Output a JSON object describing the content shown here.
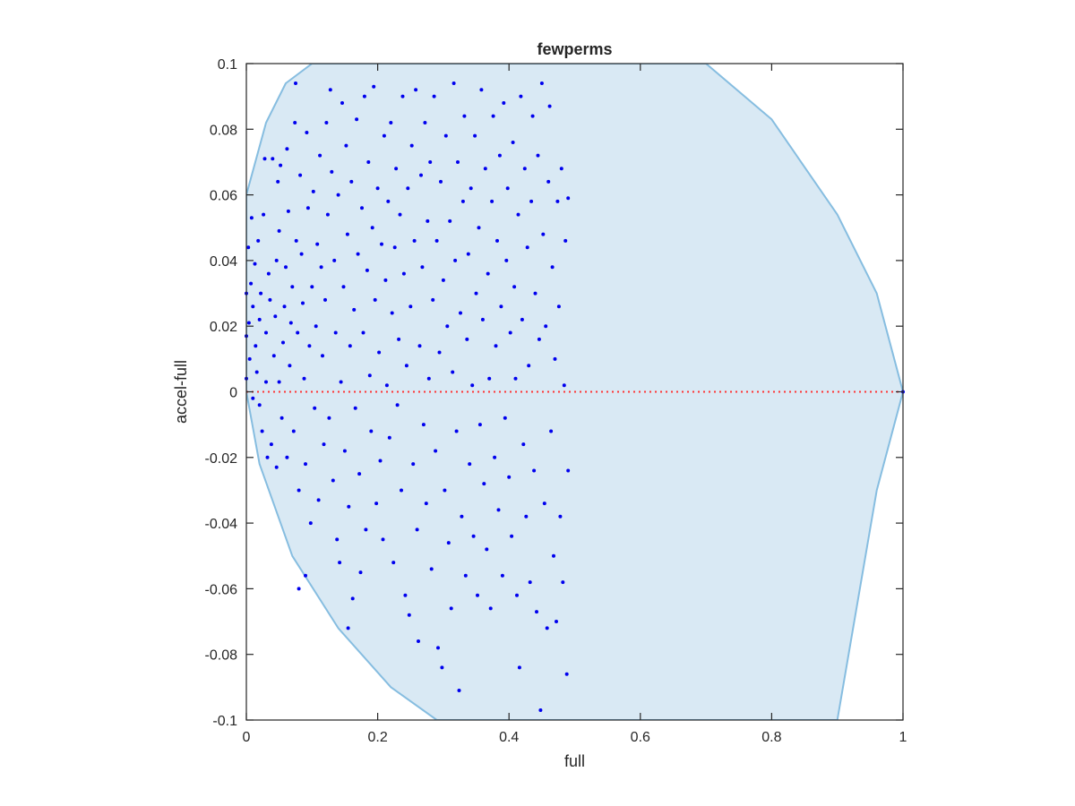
{
  "chart_data": {
    "type": "scatter",
    "title": "fewperms",
    "xlabel": "full",
    "ylabel": "accel-full",
    "xlim": [
      0,
      1
    ],
    "ylim": [
      -0.1,
      0.1
    ],
    "x_ticks": [
      0,
      0.2,
      0.4,
      0.6,
      0.8,
      1
    ],
    "y_ticks": [
      -0.1,
      -0.08,
      -0.06,
      -0.04,
      -0.02,
      0,
      0.02,
      0.04,
      0.06,
      0.08,
      0.1
    ],
    "x_tick_labels": [
      "0",
      "0.2",
      "0.4",
      "0.6",
      "0.8",
      "1"
    ],
    "y_tick_labels": [
      "-0.1",
      "-0.08",
      "-0.06",
      "-0.04",
      "-0.02",
      "0",
      "0.02",
      "0.04",
      "0.06",
      "0.08",
      "0.1"
    ],
    "grid": false,
    "colors": {
      "points": "#0000ee",
      "region_fill": "#d9e9f4",
      "region_edge": "#86bde0",
      "reference_line": "#ff3333",
      "axes": "#262626"
    },
    "feasible_region": {
      "description_shape": "ellipse-like band with boundary through (0,0) and (1,0)",
      "boundary_points": [
        [
          0,
          0.0
        ],
        [
          0.0,
          0.06
        ],
        [
          0.03,
          0.082
        ],
        [
          0.06,
          0.094
        ],
        [
          0.1,
          0.1
        ],
        [
          0.7,
          0.1
        ],
        [
          0.8,
          0.083
        ],
        [
          0.9,
          0.054
        ],
        [
          0.96,
          0.03
        ],
        [
          1.0,
          0.0
        ],
        [
          0.96,
          -0.03
        ],
        [
          0.9,
          -0.1
        ],
        [
          0.29,
          -0.1
        ],
        [
          0.22,
          -0.09
        ],
        [
          0.14,
          -0.072
        ],
        [
          0.07,
          -0.05
        ],
        [
          0.02,
          -0.022
        ],
        [
          0,
          0.0
        ]
      ]
    },
    "reference_line": {
      "y": 0,
      "style": "dotted"
    },
    "series": [
      {
        "points": [
          [
            0.0,
            0.017
          ],
          [
            0.0,
            0.03
          ],
          [
            0.0,
            0.004
          ],
          [
            0.003,
            0.044
          ],
          [
            0.004,
            0.021
          ],
          [
            0.005,
            0.01
          ],
          [
            0.007,
            0.033
          ],
          [
            0.008,
            0.053
          ],
          [
            0.01,
            0.026
          ],
          [
            0.01,
            -0.002
          ],
          [
            0.013,
            0.039
          ],
          [
            0.014,
            0.014
          ],
          [
            0.016,
            0.006
          ],
          [
            0.018,
            0.046
          ],
          [
            0.02,
            0.022
          ],
          [
            0.02,
            -0.004
          ],
          [
            0.022,
            0.03
          ],
          [
            0.024,
            -0.012
          ],
          [
            0.026,
            0.054
          ],
          [
            0.028,
            0.071
          ],
          [
            0.03,
            0.018
          ],
          [
            0.03,
            0.003
          ],
          [
            0.032,
            -0.02
          ],
          [
            0.034,
            0.036
          ],
          [
            0.036,
            0.028
          ],
          [
            0.038,
            -0.016
          ],
          [
            0.04,
            0.071
          ],
          [
            0.042,
            0.011
          ],
          [
            0.044,
            0.023
          ],
          [
            0.046,
            0.04
          ],
          [
            0.046,
            -0.023
          ],
          [
            0.048,
            0.064
          ],
          [
            0.05,
            0.003
          ],
          [
            0.05,
            0.049
          ],
          [
            0.052,
            0.069
          ],
          [
            0.054,
            -0.008
          ],
          [
            0.056,
            0.015
          ],
          [
            0.058,
            0.026
          ],
          [
            0.06,
            0.038
          ],
          [
            0.062,
            0.074
          ],
          [
            0.062,
            -0.02
          ],
          [
            0.064,
            0.055
          ],
          [
            0.066,
            0.008
          ],
          [
            0.068,
            0.021
          ],
          [
            0.07,
            0.032
          ],
          [
            0.072,
            -0.012
          ],
          [
            0.074,
            0.082
          ],
          [
            0.075,
            0.094
          ],
          [
            0.076,
            0.046
          ],
          [
            0.078,
            0.018
          ],
          [
            0.08,
            -0.03
          ],
          [
            0.082,
            0.066
          ],
          [
            0.084,
            0.042
          ],
          [
            0.086,
            0.027
          ],
          [
            0.088,
            0.004
          ],
          [
            0.09,
            -0.022
          ],
          [
            0.092,
            0.079
          ],
          [
            0.094,
            0.056
          ],
          [
            0.096,
            0.014
          ],
          [
            0.098,
            -0.04
          ],
          [
            0.1,
            0.032
          ],
          [
            0.102,
            0.061
          ],
          [
            0.104,
            -0.005
          ],
          [
            0.106,
            0.02
          ],
          [
            0.108,
            0.045
          ],
          [
            0.11,
            -0.033
          ],
          [
            0.112,
            0.072
          ],
          [
            0.114,
            0.038
          ],
          [
            0.116,
            0.011
          ],
          [
            0.118,
            -0.016
          ],
          [
            0.08,
            -0.06
          ],
          [
            0.09,
            -0.056
          ],
          [
            0.12,
            0.028
          ],
          [
            0.122,
            0.082
          ],
          [
            0.124,
            0.054
          ],
          [
            0.126,
            -0.008
          ],
          [
            0.128,
            0.092
          ],
          [
            0.13,
            0.067
          ],
          [
            0.132,
            -0.027
          ],
          [
            0.134,
            0.04
          ],
          [
            0.136,
            0.018
          ],
          [
            0.138,
            -0.045
          ],
          [
            0.14,
            0.06
          ],
          [
            0.142,
            -0.052
          ],
          [
            0.144,
            0.003
          ],
          [
            0.146,
            0.088
          ],
          [
            0.148,
            0.032
          ],
          [
            0.15,
            -0.018
          ],
          [
            0.152,
            0.075
          ],
          [
            0.154,
            0.048
          ],
          [
            0.156,
            -0.035
          ],
          [
            0.158,
            0.014
          ],
          [
            0.16,
            0.064
          ],
          [
            0.162,
            -0.063
          ],
          [
            0.164,
            0.025
          ],
          [
            0.166,
            -0.005
          ],
          [
            0.168,
            0.083
          ],
          [
            0.17,
            0.042
          ],
          [
            0.172,
            -0.025
          ],
          [
            0.155,
            -0.072
          ],
          [
            0.174,
            -0.055
          ],
          [
            0.176,
            0.056
          ],
          [
            0.178,
            0.018
          ],
          [
            0.18,
            0.09
          ],
          [
            0.182,
            -0.042
          ],
          [
            0.184,
            0.037
          ],
          [
            0.186,
            0.07
          ],
          [
            0.188,
            0.005
          ],
          [
            0.19,
            -0.012
          ],
          [
            0.192,
            0.05
          ],
          [
            0.194,
            0.093
          ],
          [
            0.196,
            0.028
          ],
          [
            0.198,
            -0.034
          ],
          [
            0.2,
            0.062
          ],
          [
            0.202,
            0.012
          ],
          [
            0.204,
            -0.021
          ],
          [
            0.206,
            0.045
          ],
          [
            0.208,
            -0.045
          ],
          [
            0.21,
            0.078
          ],
          [
            0.212,
            0.034
          ],
          [
            0.214,
            0.002
          ],
          [
            0.216,
            0.058
          ],
          [
            0.218,
            -0.014
          ],
          [
            0.22,
            0.082
          ],
          [
            0.222,
            0.024
          ],
          [
            0.224,
            -0.052
          ],
          [
            0.226,
            0.044
          ],
          [
            0.228,
            0.068
          ],
          [
            0.23,
            -0.004
          ],
          [
            0.232,
            0.016
          ],
          [
            0.234,
            0.054
          ],
          [
            0.236,
            -0.03
          ],
          [
            0.238,
            0.09
          ],
          [
            0.24,
            0.036
          ],
          [
            0.242,
            -0.062
          ],
          [
            0.244,
            0.008
          ],
          [
            0.246,
            0.062
          ],
          [
            0.248,
            -0.068
          ],
          [
            0.25,
            0.026
          ],
          [
            0.252,
            0.075
          ],
          [
            0.254,
            -0.022
          ],
          [
            0.256,
            0.046
          ],
          [
            0.258,
            0.092
          ],
          [
            0.26,
            -0.042
          ],
          [
            0.262,
            -0.076
          ],
          [
            0.264,
            0.014
          ],
          [
            0.266,
            0.066
          ],
          [
            0.268,
            0.038
          ],
          [
            0.27,
            -0.01
          ],
          [
            0.272,
            0.082
          ],
          [
            0.274,
            -0.034
          ],
          [
            0.276,
            0.052
          ],
          [
            0.278,
            0.004
          ],
          [
            0.28,
            0.07
          ],
          [
            0.282,
            -0.054
          ],
          [
            0.284,
            0.028
          ],
          [
            0.286,
            0.09
          ],
          [
            0.288,
            -0.018
          ],
          [
            0.29,
            0.046
          ],
          [
            0.292,
            -0.078
          ],
          [
            0.294,
            0.012
          ],
          [
            0.296,
            0.064
          ],
          [
            0.298,
            -0.084
          ],
          [
            0.3,
            0.034
          ],
          [
            0.302,
            -0.03
          ],
          [
            0.304,
            0.078
          ],
          [
            0.306,
            0.02
          ],
          [
            0.308,
            -0.046
          ],
          [
            0.31,
            0.052
          ],
          [
            0.312,
            -0.066
          ],
          [
            0.314,
            0.006
          ],
          [
            0.316,
            0.094
          ],
          [
            0.318,
            0.04
          ],
          [
            0.32,
            -0.012
          ],
          [
            0.322,
            0.07
          ],
          [
            0.324,
            -0.091
          ],
          [
            0.326,
            0.024
          ],
          [
            0.328,
            -0.038
          ],
          [
            0.33,
            0.058
          ],
          [
            0.332,
            0.084
          ],
          [
            0.334,
            -0.056
          ],
          [
            0.336,
            0.016
          ],
          [
            0.338,
            0.042
          ],
          [
            0.34,
            -0.022
          ],
          [
            0.342,
            0.062
          ],
          [
            0.344,
            0.002
          ],
          [
            0.346,
            -0.044
          ],
          [
            0.348,
            0.078
          ],
          [
            0.35,
            0.03
          ],
          [
            0.352,
            -0.062
          ],
          [
            0.354,
            0.05
          ],
          [
            0.356,
            -0.01
          ],
          [
            0.358,
            0.092
          ],
          [
            0.36,
            0.022
          ],
          [
            0.362,
            -0.028
          ],
          [
            0.364,
            0.068
          ],
          [
            0.366,
            -0.048
          ],
          [
            0.368,
            0.036
          ],
          [
            0.37,
            0.004
          ],
          [
            0.372,
            -0.066
          ],
          [
            0.374,
            0.058
          ],
          [
            0.376,
            0.084
          ],
          [
            0.378,
            -0.02
          ],
          [
            0.38,
            0.014
          ],
          [
            0.382,
            0.046
          ],
          [
            0.384,
            -0.036
          ],
          [
            0.386,
            0.072
          ],
          [
            0.388,
            0.026
          ],
          [
            0.39,
            -0.056
          ],
          [
            0.392,
            0.088
          ],
          [
            0.394,
            -0.008
          ],
          [
            0.396,
            0.04
          ],
          [
            0.398,
            0.062
          ],
          [
            0.4,
            -0.026
          ],
          [
            0.402,
            0.018
          ],
          [
            0.404,
            -0.044
          ],
          [
            0.406,
            0.076
          ],
          [
            0.408,
            0.032
          ],
          [
            0.41,
            0.004
          ],
          [
            0.412,
            -0.062
          ],
          [
            0.414,
            0.054
          ],
          [
            0.416,
            -0.084
          ],
          [
            0.418,
            0.09
          ],
          [
            0.42,
            0.022
          ],
          [
            0.422,
            -0.016
          ],
          [
            0.424,
            0.068
          ],
          [
            0.426,
            -0.038
          ],
          [
            0.428,
            0.044
          ],
          [
            0.43,
            0.008
          ],
          [
            0.432,
            -0.058
          ],
          [
            0.434,
            0.058
          ],
          [
            0.436,
            0.084
          ],
          [
            0.438,
            -0.024
          ],
          [
            0.44,
            0.03
          ],
          [
            0.442,
            -0.067
          ],
          [
            0.444,
            0.072
          ],
          [
            0.446,
            0.016
          ],
          [
            0.448,
            -0.097
          ],
          [
            0.45,
            0.094
          ],
          [
            0.452,
            0.048
          ],
          [
            0.454,
            -0.034
          ],
          [
            0.456,
            0.02
          ],
          [
            0.458,
            -0.072
          ],
          [
            0.46,
            0.064
          ],
          [
            0.462,
            0.087
          ],
          [
            0.464,
            -0.012
          ],
          [
            0.466,
            0.038
          ],
          [
            0.468,
            -0.05
          ],
          [
            0.47,
            0.01
          ],
          [
            0.472,
            -0.07
          ],
          [
            0.474,
            0.058
          ],
          [
            0.476,
            0.026
          ],
          [
            0.478,
            -0.038
          ],
          [
            0.48,
            0.068
          ],
          [
            0.482,
            -0.058
          ],
          [
            0.484,
            0.002
          ],
          [
            0.486,
            0.046
          ],
          [
            0.488,
            -0.086
          ],
          [
            0.49,
            0.059
          ],
          [
            0.49,
            -0.024
          ],
          [
            1.0,
            0.0
          ]
        ]
      }
    ]
  }
}
